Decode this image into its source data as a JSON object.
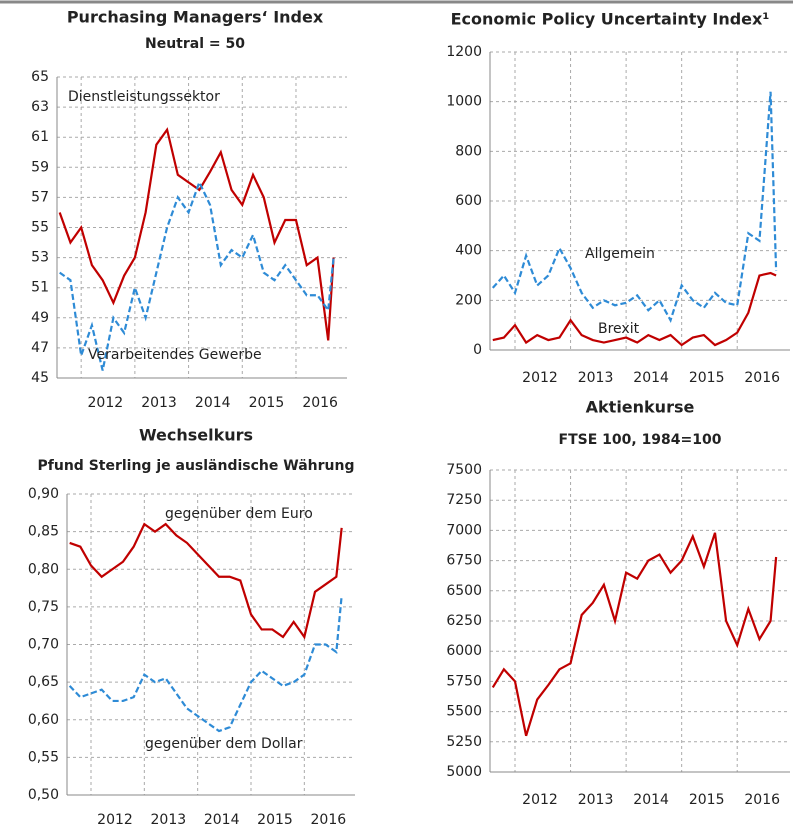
{
  "chart_data": [
    {
      "type": "line",
      "title": "Purchasing Managers‘ Index",
      "subtitle": "Neutral = 50",
      "x": [
        2011.6,
        2011.8,
        2012.0,
        2012.2,
        2012.4,
        2012.6,
        2012.8,
        2013.0,
        2013.2,
        2013.4,
        2013.6,
        2013.8,
        2014.0,
        2014.2,
        2014.4,
        2014.6,
        2014.8,
        2015.0,
        2015.2,
        2015.4,
        2015.6,
        2015.8,
        2016.0,
        2016.2,
        2016.4,
        2016.6,
        2016.7
      ],
      "series": [
        {
          "name": "Dienstleistungssektor",
          "color": "#c00000",
          "style": "solid",
          "values": [
            56,
            54,
            55,
            52.5,
            51.5,
            50,
            51.8,
            53,
            56,
            60.5,
            61.5,
            58.5,
            58,
            57.5,
            58.7,
            60,
            57.5,
            56.5,
            58.5,
            57,
            54,
            55.5,
            55.5,
            52.5,
            53,
            47.5,
            53
          ]
        },
        {
          "name": "Verarbeitendes Gewerbe",
          "color": "#2e8bd6",
          "style": "dashed",
          "values": [
            52,
            51.5,
            46.5,
            48.5,
            45.5,
            49,
            48,
            51,
            49,
            52,
            55,
            57,
            56,
            58,
            56.5,
            52.5,
            53.5,
            53,
            54.5,
            52,
            51.5,
            52.5,
            51.5,
            50.5,
            50.5,
            49.5,
            53
          ]
        }
      ],
      "xlim": [
        2011.55,
        2016.95
      ],
      "xticks": [
        2012,
        2013,
        2014,
        2015,
        2016
      ],
      "ylim": [
        45,
        65
      ],
      "yticks": [
        45,
        47,
        49,
        51,
        53,
        55,
        57,
        59,
        61,
        63,
        65
      ],
      "grid": true
    },
    {
      "type": "line",
      "title": "Economic Policy Uncertainty Index¹",
      "x": [
        2011.6,
        2011.8,
        2012.0,
        2012.2,
        2012.4,
        2012.6,
        2012.8,
        2013.0,
        2013.2,
        2013.4,
        2013.6,
        2013.8,
        2014.0,
        2014.2,
        2014.4,
        2014.6,
        2014.8,
        2015.0,
        2015.2,
        2015.4,
        2015.6,
        2015.8,
        2016.0,
        2016.2,
        2016.4,
        2016.6,
        2016.7
      ],
      "series": [
        {
          "name": "Allgemein",
          "color": "#2e8bd6",
          "style": "dashed",
          "values": [
            250,
            300,
            230,
            380,
            260,
            300,
            410,
            330,
            230,
            170,
            200,
            180,
            190,
            220,
            160,
            200,
            120,
            260,
            200,
            170,
            230,
            190,
            180,
            470,
            440,
            1040,
            320
          ]
        },
        {
          "name": "Brexit",
          "color": "#c00000",
          "style": "solid",
          "values": [
            40,
            50,
            100,
            30,
            60,
            40,
            50,
            120,
            60,
            40,
            30,
            40,
            50,
            30,
            60,
            40,
            60,
            20,
            50,
            60,
            20,
            40,
            70,
            150,
            300,
            310,
            300
          ]
        }
      ],
      "xlim": [
        2011.55,
        2016.95
      ],
      "xticks": [
        2012,
        2013,
        2014,
        2015,
        2016
      ],
      "ylim": [
        0,
        1200
      ],
      "yticks": [
        0,
        200,
        400,
        600,
        800,
        1000,
        1200
      ],
      "grid": true
    },
    {
      "type": "line",
      "title": "Wechselkurs",
      "subtitle": "Pfund Sterling je ausländische Währung",
      "x": [
        2011.6,
        2011.8,
        2012.0,
        2012.2,
        2012.4,
        2012.6,
        2012.8,
        2013.0,
        2013.2,
        2013.4,
        2013.6,
        2013.8,
        2014.0,
        2014.2,
        2014.4,
        2014.6,
        2014.8,
        2015.0,
        2015.2,
        2015.4,
        2015.6,
        2015.8,
        2016.0,
        2016.2,
        2016.4,
        2016.6,
        2016.7
      ],
      "series": [
        {
          "name": "gegenüber dem Euro",
          "color": "#c00000",
          "style": "solid",
          "values": [
            0.835,
            0.83,
            0.805,
            0.79,
            0.8,
            0.81,
            0.83,
            0.86,
            0.85,
            0.86,
            0.845,
            0.835,
            0.82,
            0.805,
            0.79,
            0.79,
            0.785,
            0.74,
            0.72,
            0.72,
            0.71,
            0.73,
            0.71,
            0.77,
            0.78,
            0.79,
            0.855
          ]
        },
        {
          "name": "gegenüber dem Dollar",
          "color": "#2e8bd6",
          "style": "dashed",
          "values": [
            0.645,
            0.63,
            0.635,
            0.64,
            0.625,
            0.625,
            0.63,
            0.66,
            0.65,
            0.655,
            0.635,
            0.615,
            0.605,
            0.595,
            0.585,
            0.59,
            0.62,
            0.65,
            0.665,
            0.655,
            0.645,
            0.65,
            0.66,
            0.7,
            0.7,
            0.69,
            0.765
          ]
        }
      ],
      "xlim": [
        2011.55,
        2016.95
      ],
      "xticks": [
        2012,
        2013,
        2014,
        2015,
        2016
      ],
      "ylim": [
        0.5,
        0.9
      ],
      "yticks": [
        {
          "value": 0.5,
          "label": "0,50"
        },
        {
          "value": 0.55,
          "label": "0,55"
        },
        {
          "value": 0.6,
          "label": "0,60"
        },
        {
          "value": 0.65,
          "label": "0,65"
        },
        {
          "value": 0.7,
          "label": "0,70"
        },
        {
          "value": 0.75,
          "label": "0,75"
        },
        {
          "value": 0.8,
          "label": "0,80"
        },
        {
          "value": 0.85,
          "label": "0,85"
        },
        {
          "value": 0.9,
          "label": "0,90"
        }
      ],
      "grid": true
    },
    {
      "type": "line",
      "title": "Aktienkurse",
      "subtitle": "FTSE 100, 1984=100",
      "x": [
        2011.6,
        2011.8,
        2012.0,
        2012.2,
        2012.4,
        2012.6,
        2012.8,
        2013.0,
        2013.2,
        2013.4,
        2013.6,
        2013.8,
        2014.0,
        2014.2,
        2014.4,
        2014.6,
        2014.8,
        2015.0,
        2015.2,
        2015.4,
        2015.6,
        2015.8,
        2016.0,
        2016.2,
        2016.4,
        2016.6,
        2016.7
      ],
      "series": [
        {
          "color": "#c00000",
          "style": "solid",
          "values": [
            5700,
            5850,
            5750,
            5300,
            5600,
            5720,
            5850,
            5900,
            6300,
            6400,
            6550,
            6250,
            6650,
            6600,
            6750,
            6800,
            6650,
            6750,
            6950,
            6700,
            6980,
            6250,
            6050,
            6350,
            6100,
            6250,
            6780
          ]
        }
      ],
      "xlim": [
        2011.55,
        2016.95
      ],
      "xticks": [
        2012,
        2013,
        2014,
        2015,
        2016
      ],
      "ylim": [
        5000,
        7500
      ],
      "yticks": [
        5000,
        5250,
        5500,
        5750,
        6000,
        6250,
        6500,
        6750,
        7000,
        7250,
        7500
      ],
      "grid": true
    }
  ]
}
